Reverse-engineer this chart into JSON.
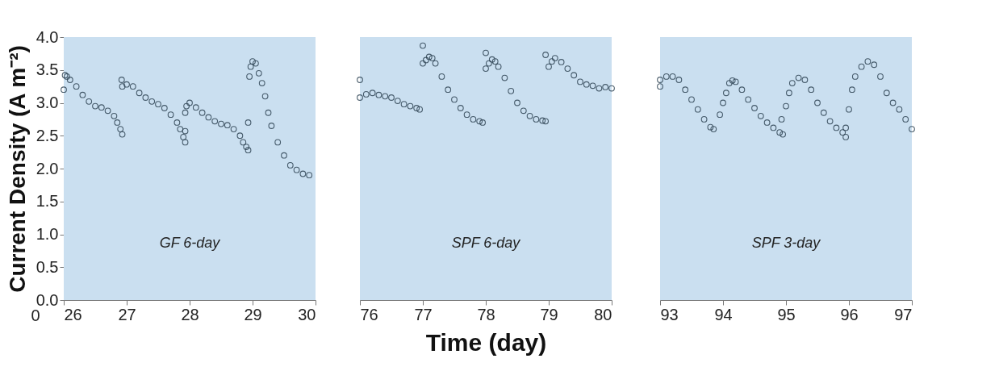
{
  "chart_data": [
    {
      "type": "scatter",
      "xlim": [
        26,
        30
      ],
      "xticks": [
        26,
        27,
        28,
        29,
        30
      ],
      "ylim": [
        0,
        4
      ],
      "yticks": [
        {
          "value": 0,
          "label": "0.0"
        },
        {
          "value": 0.5,
          "label": "0.5"
        },
        {
          "value": 1,
          "label": "1.0"
        },
        {
          "value": 1.5,
          "label": "1.5"
        },
        {
          "value": 2,
          "label": "2.0"
        },
        {
          "value": 2.5,
          "label": "2.5"
        },
        {
          "value": 3,
          "label": "3.0"
        },
        {
          "value": 3.5,
          "label": "3.5"
        },
        {
          "value": 4,
          "label": "4.0"
        }
      ],
      "ylabel": "Current Density (A m⁻²)",
      "annotations": [
        "0"
      ],
      "grid": false,
      "marker": "circle",
      "bands": [
        {
          "axis": "x",
          "from": 26,
          "to": 30,
          "label": "GF 6-day",
          "color": "#cadff0"
        }
      ],
      "series": [
        {
          "color": "#2f4454",
          "x": [
            26.0,
            26.02,
            26.05,
            26.1,
            26.2,
            26.3,
            26.4,
            26.5,
            26.6,
            26.7,
            26.8,
            26.85,
            26.9,
            26.93,
            26.92,
            26.93,
            27.0,
            27.1,
            27.2,
            27.3,
            27.4,
            27.5,
            27.6,
            27.7,
            27.8,
            27.85,
            27.9,
            27.93,
            27.93,
            27.93,
            27.95,
            28.0,
            28.1,
            28.2,
            28.3,
            28.4,
            28.5,
            28.6,
            28.7,
            28.8,
            28.85,
            28.9,
            28.93,
            28.93,
            28.95,
            28.97,
            29.0,
            29.05,
            29.1,
            29.15,
            29.2,
            29.25,
            29.3,
            29.4,
            29.5,
            29.6,
            29.7,
            29.8,
            29.9
          ],
          "values": [
            3.2,
            3.42,
            3.4,
            3.35,
            3.25,
            3.12,
            3.02,
            2.95,
            2.93,
            2.88,
            2.8,
            2.7,
            2.6,
            2.52,
            3.35,
            3.25,
            3.28,
            3.25,
            3.15,
            3.08,
            3.02,
            2.98,
            2.92,
            2.82,
            2.7,
            2.6,
            2.48,
            2.4,
            2.57,
            2.85,
            2.95,
            3.0,
            2.93,
            2.85,
            2.78,
            2.72,
            2.68,
            2.66,
            2.6,
            2.5,
            2.4,
            2.33,
            2.28,
            2.7,
            3.4,
            3.55,
            3.63,
            3.6,
            3.45,
            3.3,
            3.1,
            2.85,
            2.65,
            2.4,
            2.2,
            2.05,
            1.98,
            1.92,
            1.9
          ]
        }
      ]
    },
    {
      "type": "scatter",
      "xlim": [
        76,
        80
      ],
      "xticks": [
        76,
        77,
        78,
        79,
        80
      ],
      "ylim": [
        0,
        4
      ],
      "tick_labels": "x",
      "xlabel": "Time (day)",
      "grid": false,
      "marker": "circle",
      "bands": [
        {
          "axis": "x",
          "from": 76,
          "to": 80,
          "label": "SPF 6-day",
          "color": "#cadff0"
        }
      ],
      "series": [
        {
          "color": "#2f4454",
          "x": [
            76.0,
            76.0,
            76.1,
            76.2,
            76.3,
            76.4,
            76.5,
            76.6,
            76.7,
            76.8,
            76.9,
            76.95,
            77.0,
            77.0,
            77.05,
            77.1,
            77.15,
            77.2,
            77.3,
            77.4,
            77.5,
            77.6,
            77.7,
            77.8,
            77.9,
            77.95,
            78.0,
            78.0,
            78.05,
            78.1,
            78.15,
            78.2,
            78.3,
            78.4,
            78.5,
            78.6,
            78.7,
            78.8,
            78.9,
            78.95,
            78.95,
            79.0,
            79.05,
            79.1,
            79.2,
            79.3,
            79.4,
            79.5,
            79.6,
            79.7,
            79.8,
            79.9,
            80.0
          ],
          "values": [
            3.35,
            3.08,
            3.13,
            3.15,
            3.12,
            3.1,
            3.08,
            3.03,
            2.98,
            2.95,
            2.92,
            2.9,
            3.87,
            3.6,
            3.65,
            3.7,
            3.68,
            3.6,
            3.4,
            3.2,
            3.05,
            2.92,
            2.82,
            2.75,
            2.72,
            2.7,
            3.76,
            3.52,
            3.6,
            3.66,
            3.63,
            3.55,
            3.38,
            3.18,
            3.0,
            2.88,
            2.8,
            2.75,
            2.73,
            2.72,
            3.73,
            3.55,
            3.63,
            3.68,
            3.62,
            3.52,
            3.42,
            3.32,
            3.28,
            3.26,
            3.22,
            3.24,
            3.22
          ]
        }
      ]
    },
    {
      "type": "scatter",
      "xlim": [
        93,
        97
      ],
      "xticks": [
        93,
        94,
        95,
        96,
        97
      ],
      "ylim": [
        0,
        4
      ],
      "tick_labels": "x",
      "grid": false,
      "marker": "circle",
      "bands": [
        {
          "axis": "x",
          "from": 93,
          "to": 97,
          "label": "SPF 3-day",
          "color": "#cadff0"
        }
      ],
      "series": [
        {
          "color": "#2f4454",
          "x": [
            93.0,
            93.0,
            93.1,
            93.2,
            93.3,
            93.4,
            93.5,
            93.6,
            93.7,
            93.8,
            93.85,
            93.95,
            94.0,
            94.05,
            94.1,
            94.15,
            94.2,
            94.3,
            94.4,
            94.5,
            94.6,
            94.7,
            94.8,
            94.9,
            94.95,
            94.93,
            95.0,
            95.05,
            95.1,
            95.2,
            95.3,
            95.4,
            95.5,
            95.6,
            95.7,
            95.8,
            95.9,
            95.95,
            95.95,
            96.0,
            96.05,
            96.1,
            96.2,
            96.3,
            96.4,
            96.5,
            96.6,
            96.7,
            96.8,
            96.9,
            97.0
          ],
          "values": [
            3.25,
            3.35,
            3.4,
            3.4,
            3.35,
            3.2,
            3.05,
            2.9,
            2.75,
            2.63,
            2.6,
            2.82,
            3.0,
            3.15,
            3.3,
            3.34,
            3.32,
            3.2,
            3.05,
            2.92,
            2.8,
            2.7,
            2.62,
            2.55,
            2.52,
            2.75,
            2.95,
            3.15,
            3.3,
            3.38,
            3.35,
            3.2,
            3.0,
            2.85,
            2.72,
            2.62,
            2.55,
            2.48,
            2.62,
            2.9,
            3.2,
            3.4,
            3.55,
            3.63,
            3.58,
            3.4,
            3.15,
            3.0,
            2.9,
            2.75,
            2.6
          ]
        }
      ]
    }
  ]
}
